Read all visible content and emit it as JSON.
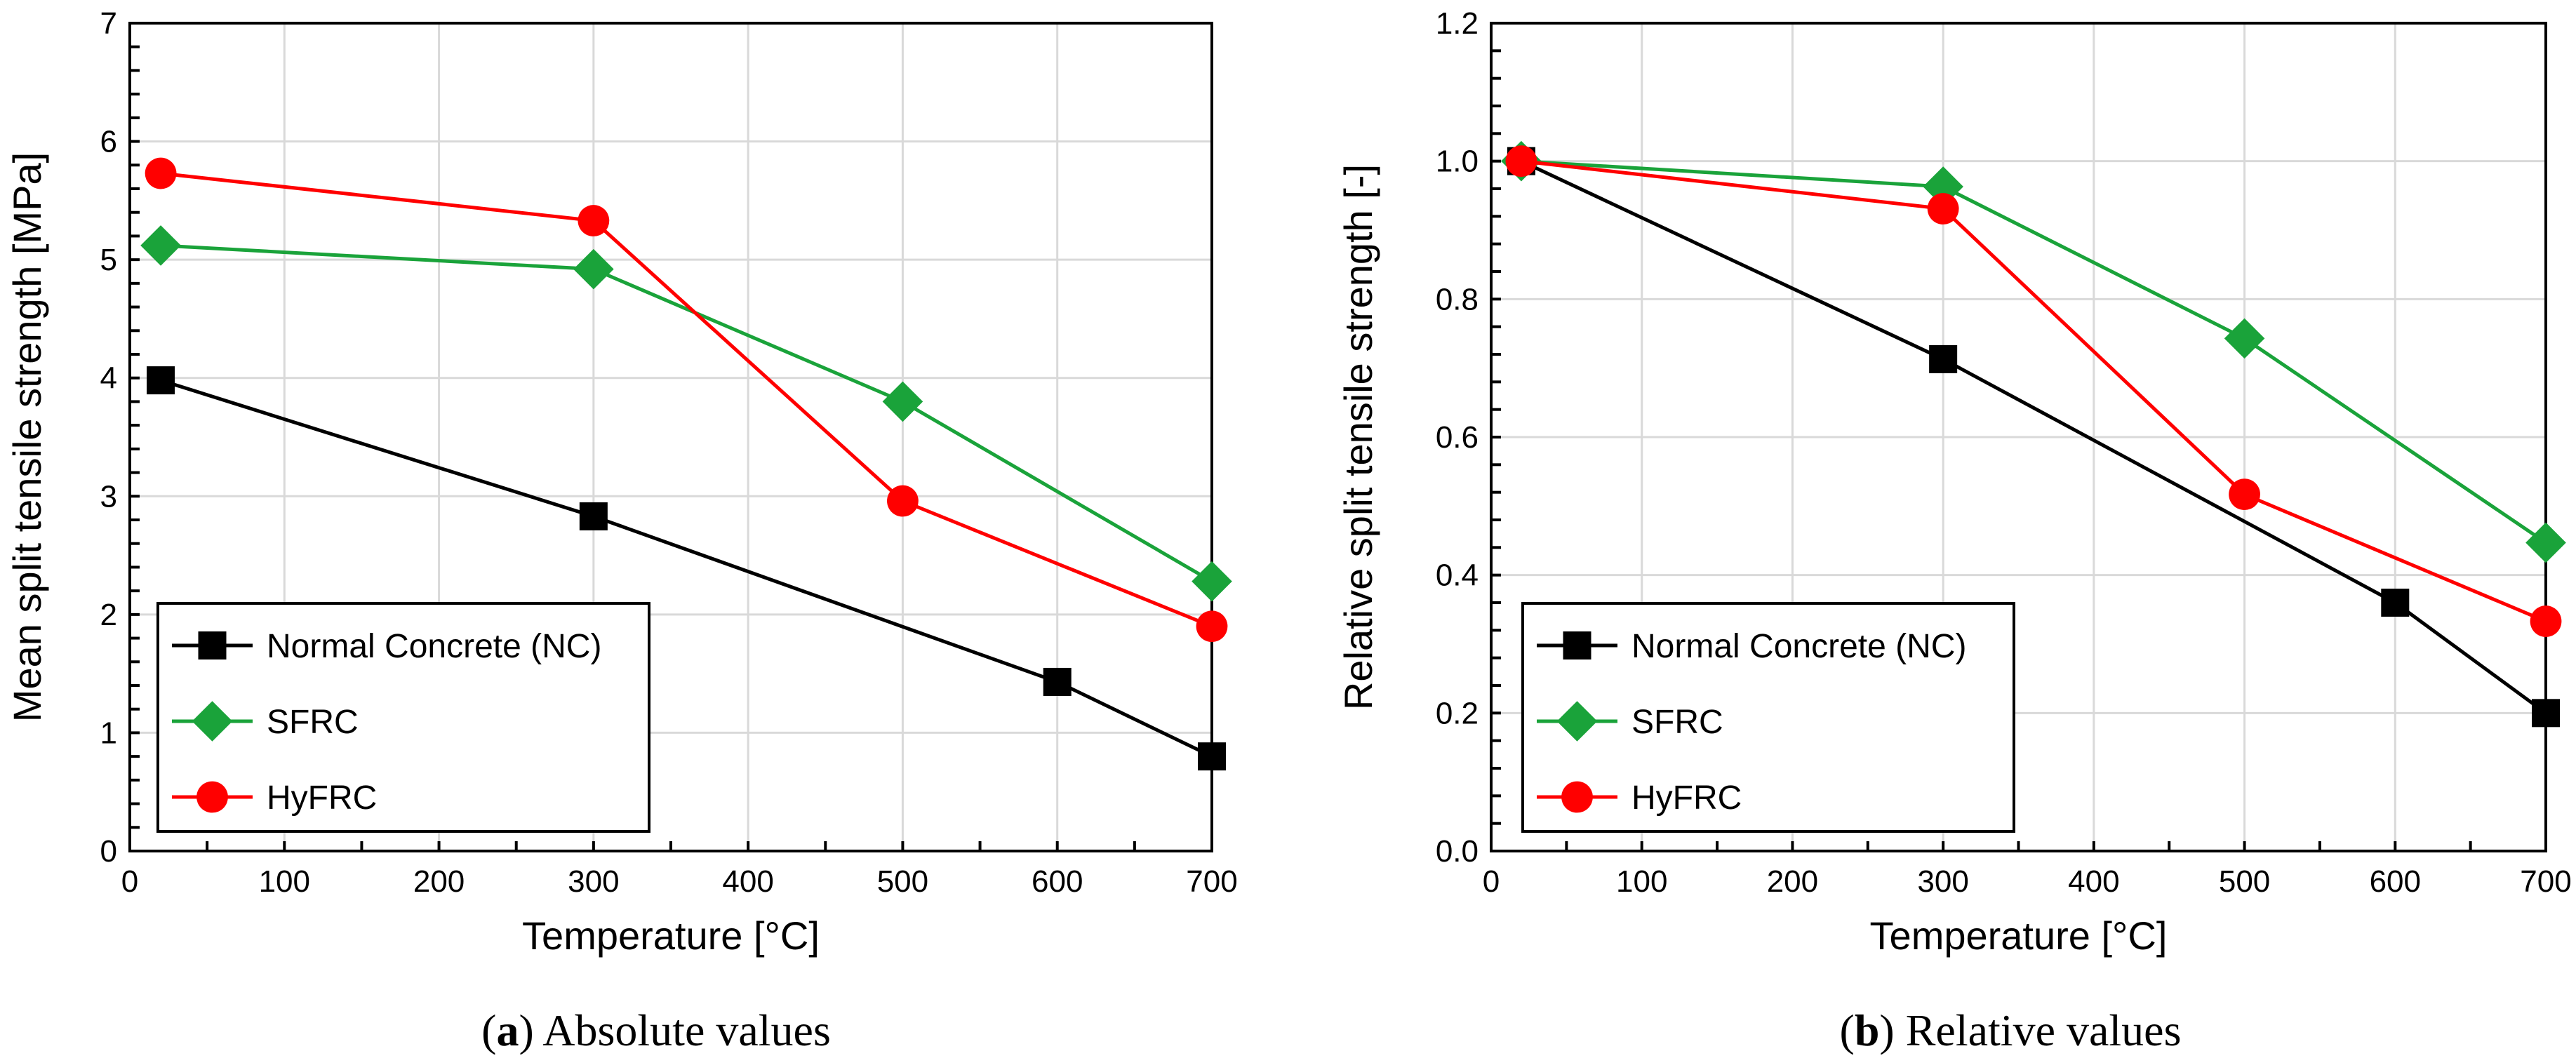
{
  "chart_data": [
    {
      "type": "line",
      "caption": {
        "label": "a",
        "text": "Absolute values"
      },
      "xlabel": "Temperature [°C]",
      "ylabel": "Mean split tensile strength [MPa]",
      "xlim": [
        0,
        700
      ],
      "ylim": [
        0,
        7
      ],
      "xticks": [
        0,
        100,
        200,
        300,
        400,
        500,
        600,
        700
      ],
      "yticks": [
        0,
        1,
        2,
        3,
        4,
        5,
        6,
        7
      ],
      "ytick_decimals": 0,
      "grid": true,
      "legend_position": "bottom-left",
      "series": [
        {
          "name": "Normal Concrete (NC)",
          "color": "#000000",
          "marker": "square",
          "x": [
            20,
            300,
            600,
            700
          ],
          "y": [
            3.98,
            2.83,
            1.43,
            0.8
          ]
        },
        {
          "name": "SFRC",
          "color": "#1aa33a",
          "marker": "diamond",
          "x": [
            20,
            300,
            500,
            700
          ],
          "y": [
            5.12,
            4.92,
            3.8,
            2.28
          ]
        },
        {
          "name": "HyFRC",
          "color": "#ff0000",
          "marker": "circle",
          "x": [
            20,
            300,
            500,
            700
          ],
          "y": [
            5.73,
            5.33,
            2.96,
            1.9
          ]
        }
      ]
    },
    {
      "type": "line",
      "caption": {
        "label": "b",
        "text": "Relative values"
      },
      "xlabel": "Temperature [°C]",
      "ylabel": "Relative split tensile strength [-]",
      "xlim": [
        0,
        700
      ],
      "ylim": [
        0,
        1.2
      ],
      "xticks": [
        0,
        100,
        200,
        300,
        400,
        500,
        600,
        700
      ],
      "yticks": [
        0,
        0.2,
        0.4,
        0.6,
        0.8,
        1.0,
        1.2
      ],
      "ytick_decimals": 1,
      "grid": true,
      "legend_position": "bottom-left",
      "series": [
        {
          "name": "Normal Concrete (NC)",
          "color": "#000000",
          "marker": "square",
          "x": [
            20,
            300,
            600,
            700
          ],
          "y": [
            1.0,
            0.713,
            0.36,
            0.2
          ]
        },
        {
          "name": "SFRC",
          "color": "#1aa33a",
          "marker": "diamond",
          "x": [
            20,
            300,
            500,
            700
          ],
          "y": [
            1.0,
            0.963,
            0.743,
            0.447
          ]
        },
        {
          "name": "HyFRC",
          "color": "#ff0000",
          "marker": "circle",
          "x": [
            20,
            300,
            500,
            700
          ],
          "y": [
            1.0,
            0.931,
            0.517,
            0.333
          ]
        }
      ]
    }
  ]
}
